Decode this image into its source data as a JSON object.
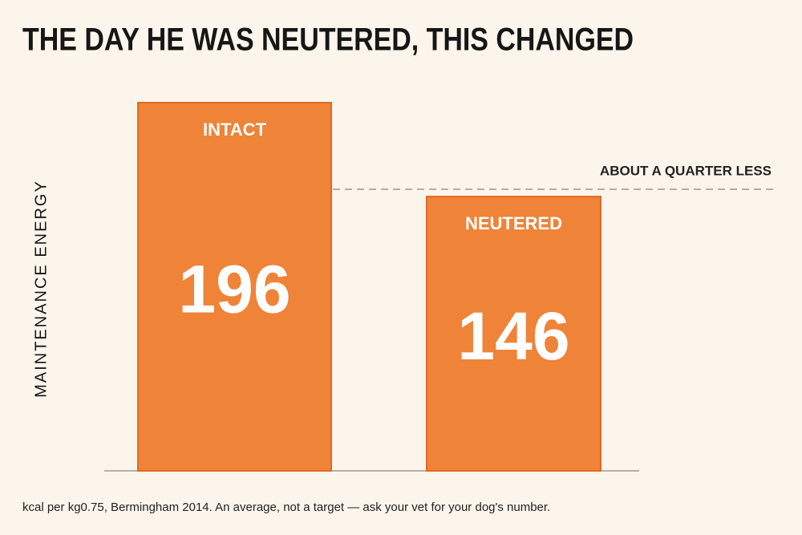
{
  "chart_data": {
    "type": "bar",
    "title": "THE DAY HE WAS NEUTERED, THIS CHANGED",
    "y_label": "MAINTENANCE ENERGY",
    "categories": [
      "INTACT",
      "NEUTERED"
    ],
    "values": [
      196,
      146
    ],
    "color": "#ef8338",
    "ylim": [
      0,
      196
    ],
    "annotation": "ABOUT A QUARTER LESS",
    "footnote": "kcal per kg0.75, Bermingham 2014. An average, not a target — ask your vet for your dog's number."
  }
}
